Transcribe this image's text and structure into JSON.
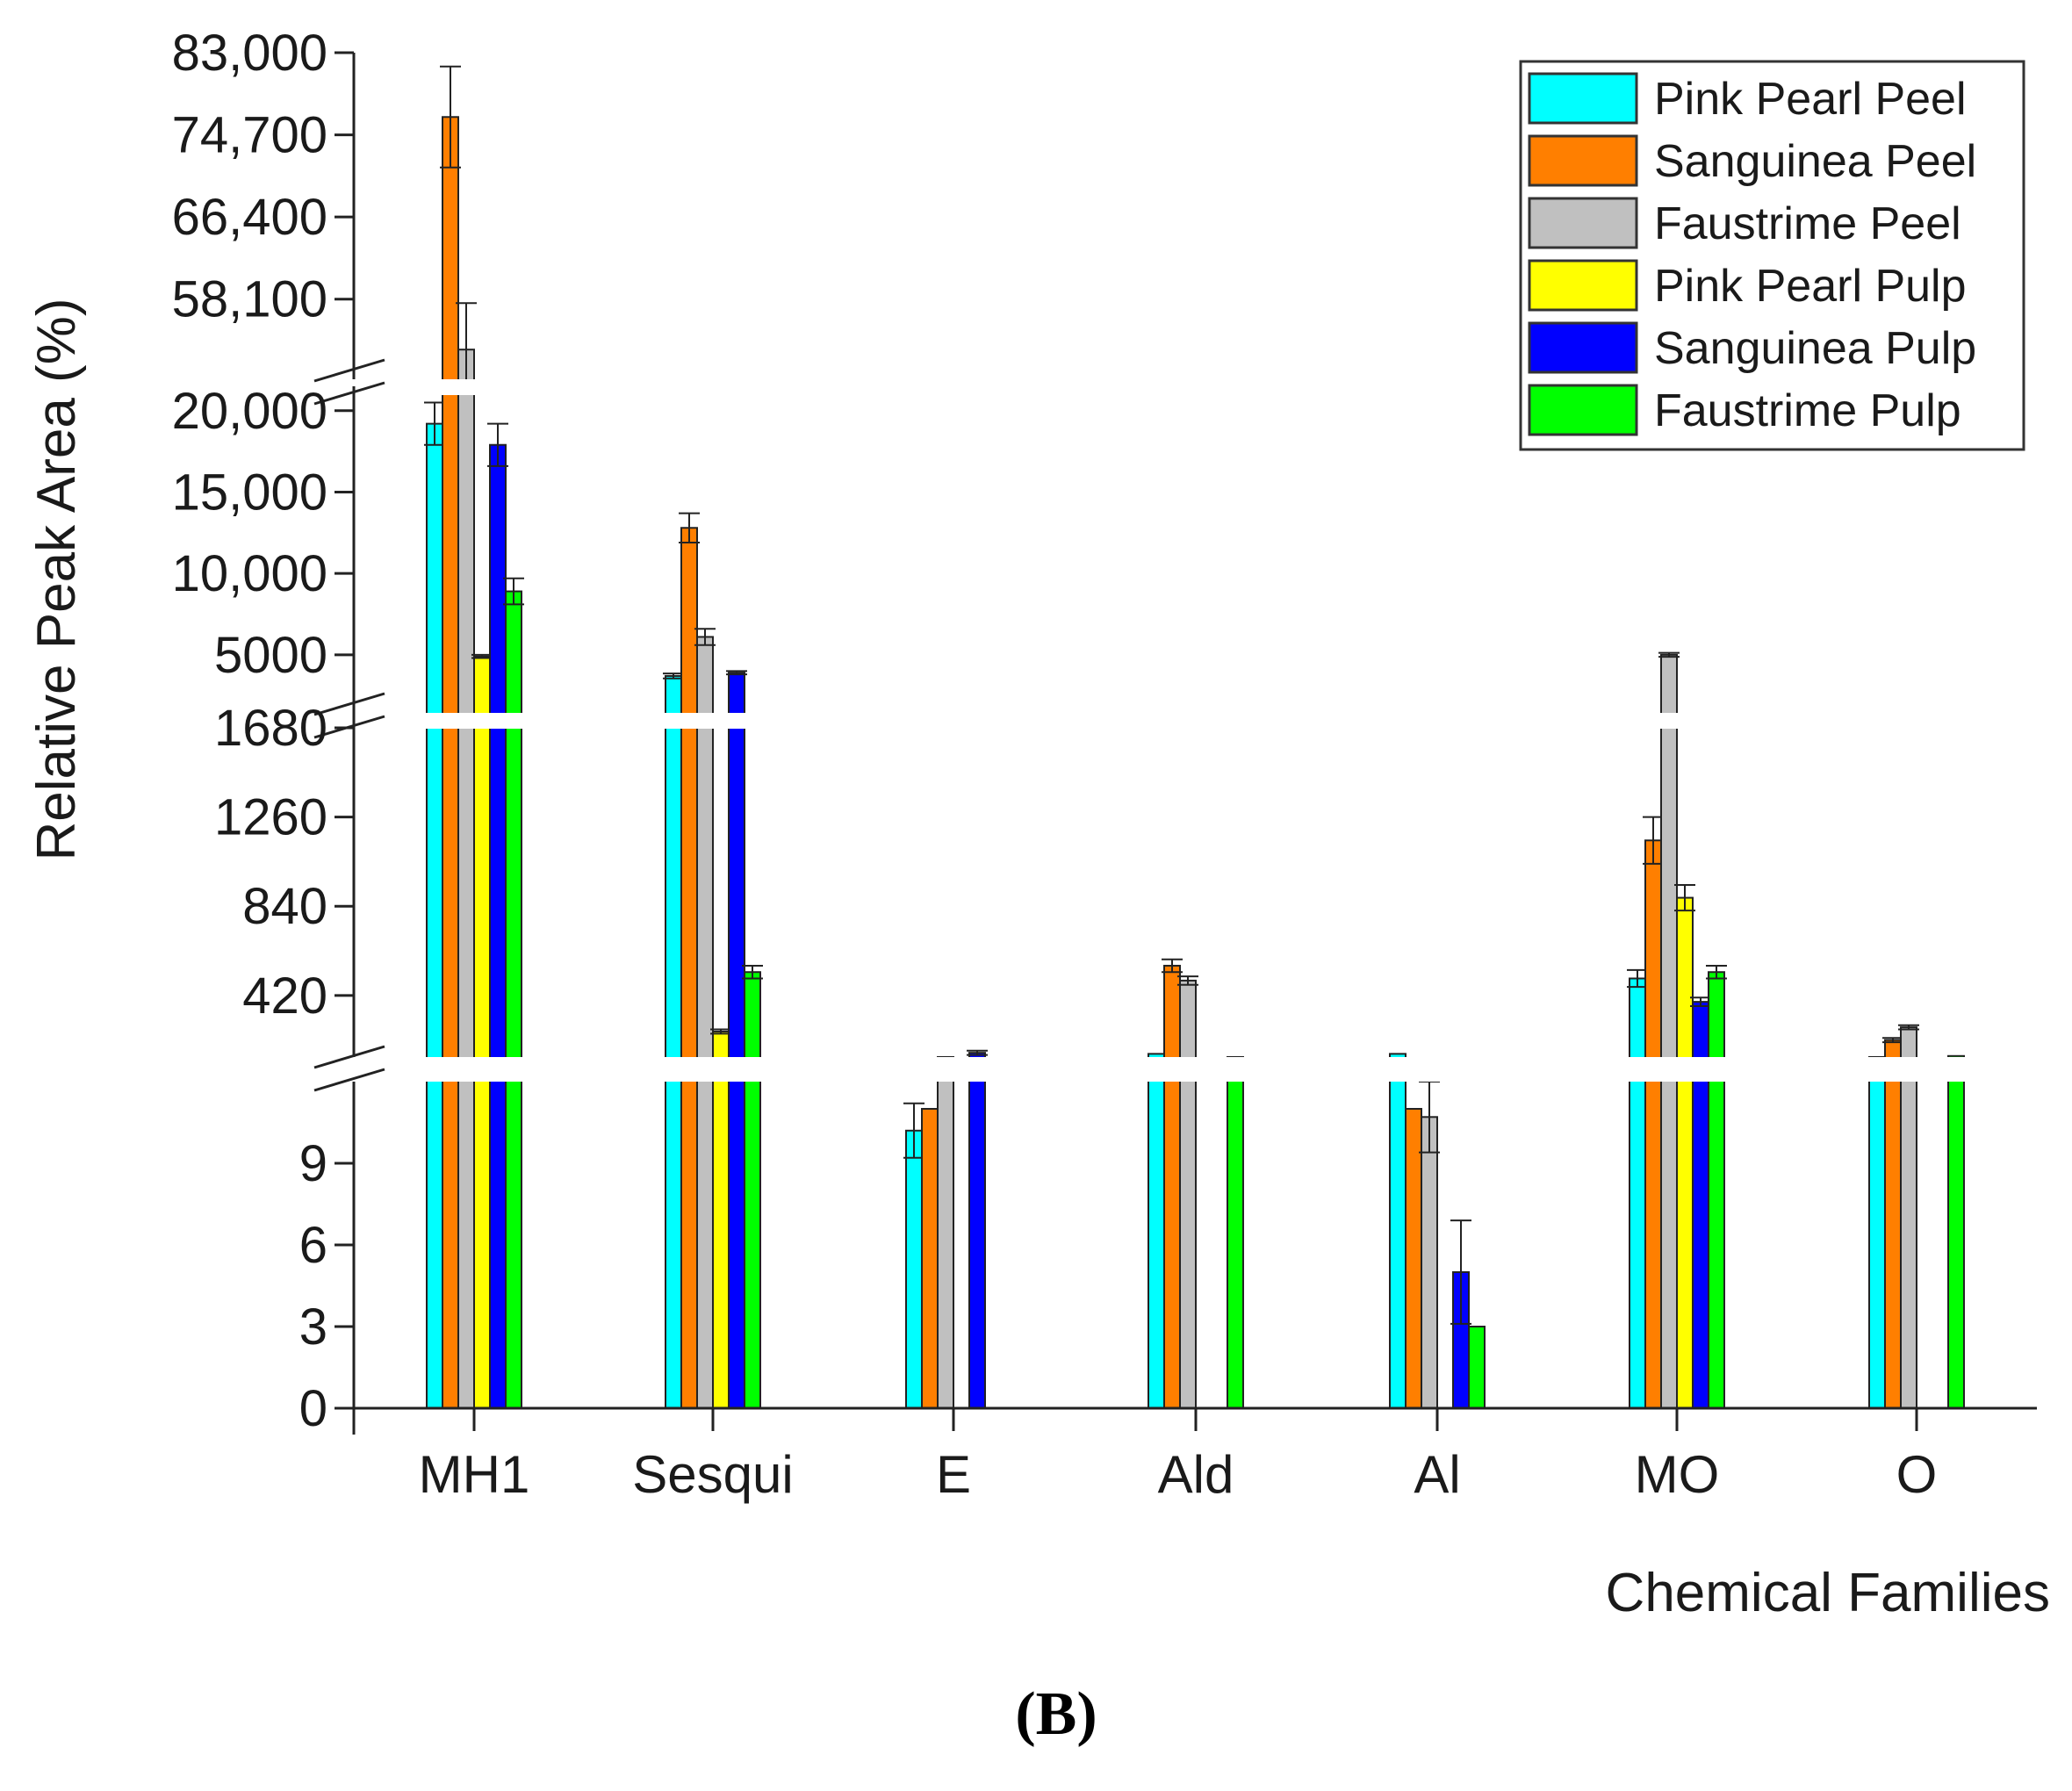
{
  "chart_data": {
    "type": "bar",
    "ylabel": "Relative Peak Area (%)",
    "xlabel": "Chemical Families",
    "panel_label": "(B)",
    "categories": [
      "MH1",
      "Sesqui",
      "E",
      "Ald",
      "Al",
      "MO",
      "O"
    ],
    "y_axis_segments": [
      {
        "range": [
          0,
          12
        ],
        "ticks": [
          0,
          3,
          6,
          9
        ],
        "tick_labels": [
          "0",
          "3",
          "6",
          "9"
        ]
      },
      {
        "range": [
          130,
          1800
        ],
        "ticks": [
          420,
          840,
          1260,
          1680
        ],
        "tick_labels": [
          "420",
          "840",
          "1260",
          "1680"
        ]
      },
      {
        "range": [
          1000,
          21500
        ],
        "ticks": [
          5000,
          10000,
          15000,
          20000
        ],
        "tick_labels": [
          "5000",
          "10,000",
          "15,000",
          "20,000"
        ]
      },
      {
        "range": [
          50000,
          83000
        ],
        "ticks": [
          58100,
          66400,
          74700,
          83000
        ],
        "tick_labels": [
          "58,100",
          "66,400",
          "74,700",
          "83,000"
        ]
      }
    ],
    "axis_break_marks": 3,
    "series": [
      {
        "name": "Pink Pearl Peel",
        "color": "#00FFFF",
        "values": [
          19200,
          3700,
          10.2,
          145,
          145,
          500,
          130
        ],
        "errors": [
          1300,
          150,
          1.0,
          0,
          0,
          40,
          0
        ]
      },
      {
        "name": "Sanguinea Peel",
        "color": "#FF7F00",
        "values": [
          76500,
          12800,
          11,
          560,
          11,
          1150,
          210
        ],
        "errors": [
          5100,
          900,
          0,
          30,
          0,
          110,
          10
        ]
      },
      {
        "name": "Faustrime Peel",
        "color": "#C0C0C0",
        "values": [
          53000,
          6100,
          130,
          490,
          10.7,
          5000,
          270
        ],
        "errors": [
          4700,
          500,
          0,
          20,
          1.3,
          120,
          10
        ]
      },
      {
        "name": "Pink Pearl Pulp",
        "color": "#FFFF00",
        "values": [
          4900,
          250,
          0,
          0,
          0,
          880,
          0
        ],
        "errors": [
          100,
          10,
          0,
          0,
          0,
          60,
          0
        ]
      },
      {
        "name": "Sanguinea Pulp",
        "color": "#0000FF",
        "values": [
          17900,
          3900,
          150,
          0,
          5,
          390,
          0
        ],
        "errors": [
          1300,
          100,
          10,
          0,
          1.9,
          20,
          0
        ]
      },
      {
        "name": "Faustrime Pulp",
        "color": "#00FF00",
        "values": [
          8900,
          530,
          0,
          130,
          3,
          530,
          135
        ],
        "errors": [
          800,
          30,
          0,
          0,
          0,
          30,
          0
        ]
      }
    ],
    "legend_position": "top-right",
    "grid": false
  }
}
